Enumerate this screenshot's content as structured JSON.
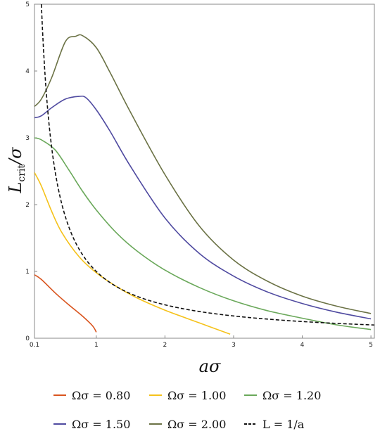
{
  "chart_data": {
    "type": "line",
    "xlabel_main": "aσ",
    "ylabel_main": "L",
    "ylabel_sub": "crit",
    "ylabel_tail": "/σ",
    "xlim": [
      0.1,
      5.05
    ],
    "ylim": [
      0,
      5
    ],
    "x_ticks": [
      {
        "v": 0.1,
        "label": "0.1"
      },
      {
        "v": 1,
        "label": "1"
      },
      {
        "v": 2,
        "label": "2"
      },
      {
        "v": 3,
        "label": "3"
      },
      {
        "v": 4,
        "label": "4"
      },
      {
        "v": 5,
        "label": "5"
      }
    ],
    "y_ticks": [
      {
        "v": 0,
        "label": "0"
      },
      {
        "v": 1,
        "label": "1"
      },
      {
        "v": 2,
        "label": "2"
      },
      {
        "v": 3,
        "label": "3"
      },
      {
        "v": 4,
        "label": "4"
      },
      {
        "v": 5,
        "label": "5"
      }
    ],
    "series": [
      {
        "name": "Ωσ = 0.80",
        "color": "#d9541e",
        "dashed": false,
        "points": [
          [
            0.1,
            0.95
          ],
          [
            0.2,
            0.88
          ],
          [
            0.4,
            0.68
          ],
          [
            0.6,
            0.5
          ],
          [
            0.8,
            0.33
          ],
          [
            0.95,
            0.18
          ],
          [
            1.0,
            0.09
          ]
        ]
      },
      {
        "name": "Ωσ = 1.00",
        "color": "#f5c21b",
        "dashed": false,
        "points": [
          [
            0.1,
            2.48
          ],
          [
            0.2,
            2.28
          ],
          [
            0.35,
            1.9
          ],
          [
            0.5,
            1.58
          ],
          [
            0.75,
            1.22
          ],
          [
            1.0,
            0.98
          ],
          [
            1.3,
            0.77
          ],
          [
            1.6,
            0.6
          ],
          [
            2.0,
            0.42
          ],
          [
            2.5,
            0.23
          ],
          [
            2.95,
            0.06
          ]
        ]
      },
      {
        "name": "Ωσ = 1.20",
        "color": "#6aa85a",
        "dashed": false,
        "points": [
          [
            0.1,
            3.0
          ],
          [
            0.2,
            2.97
          ],
          [
            0.4,
            2.82
          ],
          [
            0.6,
            2.52
          ],
          [
            0.8,
            2.2
          ],
          [
            1.0,
            1.92
          ],
          [
            1.3,
            1.57
          ],
          [
            1.6,
            1.3
          ],
          [
            2.0,
            1.02
          ],
          [
            2.5,
            0.76
          ],
          [
            3.0,
            0.56
          ],
          [
            3.5,
            0.41
          ],
          [
            4.0,
            0.3
          ],
          [
            4.5,
            0.2
          ],
          [
            5.0,
            0.13
          ]
        ]
      },
      {
        "name": "Ωσ = 1.50",
        "color": "#4f4aa0",
        "dashed": false,
        "points": [
          [
            0.1,
            3.3
          ],
          [
            0.2,
            3.33
          ],
          [
            0.35,
            3.45
          ],
          [
            0.55,
            3.58
          ],
          [
            0.75,
            3.62
          ],
          [
            0.85,
            3.6
          ],
          [
            1.0,
            3.42
          ],
          [
            1.2,
            3.1
          ],
          [
            1.5,
            2.57
          ],
          [
            2.0,
            1.8
          ],
          [
            2.5,
            1.27
          ],
          [
            3.0,
            0.93
          ],
          [
            3.5,
            0.69
          ],
          [
            4.0,
            0.52
          ],
          [
            4.5,
            0.39
          ],
          [
            5.0,
            0.29
          ]
        ]
      },
      {
        "name": "Ωσ = 2.00",
        "color": "#6b7245",
        "dashed": false,
        "points": [
          [
            0.1,
            3.47
          ],
          [
            0.2,
            3.58
          ],
          [
            0.35,
            3.9
          ],
          [
            0.55,
            4.44
          ],
          [
            0.7,
            4.52
          ],
          [
            0.8,
            4.53
          ],
          [
            1.0,
            4.35
          ],
          [
            1.2,
            3.98
          ],
          [
            1.5,
            3.38
          ],
          [
            2.0,
            2.45
          ],
          [
            2.5,
            1.68
          ],
          [
            3.0,
            1.17
          ],
          [
            3.5,
            0.85
          ],
          [
            4.0,
            0.63
          ],
          [
            4.5,
            0.48
          ],
          [
            5.0,
            0.37
          ]
        ]
      },
      {
        "name": "L = 1/a",
        "color": "#111111",
        "dashed": true,
        "func": "reciprocal",
        "x_from": 0.2,
        "x_to": 5.05
      }
    ],
    "legend": {
      "position": "bottom",
      "rows": [
        [
          {
            "series": 0,
            "label": "Ωσ = 0.80"
          },
          {
            "series": 1,
            "label": "Ωσ = 1.00"
          },
          {
            "series": 2,
            "label": "Ωσ = 1.20"
          }
        ],
        [
          {
            "series": 3,
            "label": "Ωσ = 1.50"
          },
          {
            "series": 4,
            "label": "Ωσ = 2.00"
          },
          {
            "series": 5,
            "label": "L = 1/a"
          }
        ]
      ]
    },
    "grid": false
  }
}
